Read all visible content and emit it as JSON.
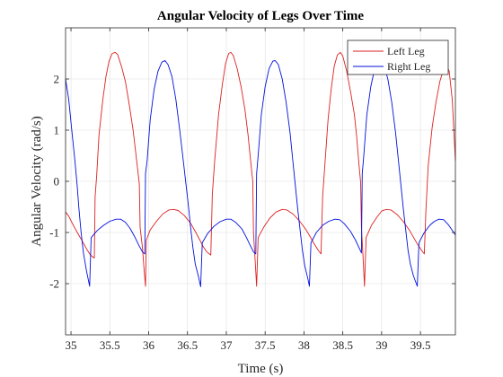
{
  "chart_data": {
    "type": "line",
    "title": "Angular Velocity of Legs Over Time",
    "xlabel": "Time (s)",
    "ylabel": "Angular Velocity (rad/s)",
    "xlim": [
      34.93,
      39.95
    ],
    "ylim": [
      -3,
      3
    ],
    "xticks": [
      35,
      35.5,
      36,
      36.5,
      37,
      37.5,
      38,
      38.5,
      39,
      39.5
    ],
    "xtick_labels": [
      "35",
      "35.5",
      "36",
      "36.5",
      "37",
      "37.5",
      "38",
      "38.5",
      "39",
      "39.5"
    ],
    "yticks": [
      -2,
      -1,
      0,
      1,
      2
    ],
    "ytick_labels": [
      "-2",
      "-1",
      "0",
      "1",
      "2"
    ],
    "grid": true,
    "legend_position": "top-right",
    "series": [
      {
        "name": "Left Leg",
        "color": "#dd2020",
        "points": [
          [
            34.93,
            -0.6
          ],
          [
            34.97,
            -0.68
          ],
          [
            35.03,
            -0.86
          ],
          [
            35.1,
            -1.05
          ],
          [
            35.15,
            -1.18
          ],
          [
            35.2,
            -1.32
          ],
          [
            35.25,
            -1.44
          ],
          [
            35.3,
            -1.5
          ],
          [
            35.31,
            -0.3
          ],
          [
            35.33,
            0.1
          ],
          [
            35.36,
            0.9
          ],
          [
            35.41,
            1.6
          ],
          [
            35.45,
            2.05
          ],
          [
            35.49,
            2.35
          ],
          [
            35.53,
            2.5
          ],
          [
            35.57,
            2.52
          ],
          [
            35.6,
            2.48
          ],
          [
            35.65,
            2.25
          ],
          [
            35.7,
            1.95
          ],
          [
            35.75,
            1.5
          ],
          [
            35.8,
            1.0
          ],
          [
            35.85,
            0.35
          ],
          [
            35.88,
            -0.05
          ],
          [
            35.89,
            -0.9
          ],
          [
            35.92,
            -1.3
          ],
          [
            35.94,
            -1.7
          ],
          [
            35.96,
            -2.05
          ],
          [
            35.97,
            -1.15
          ],
          [
            36.02,
            -0.95
          ],
          [
            36.1,
            -0.78
          ],
          [
            36.18,
            -0.64
          ],
          [
            36.26,
            -0.56
          ],
          [
            36.32,
            -0.55
          ],
          [
            36.38,
            -0.57
          ],
          [
            36.46,
            -0.67
          ],
          [
            36.54,
            -0.82
          ],
          [
            36.6,
            -0.98
          ],
          [
            36.66,
            -1.15
          ],
          [
            36.7,
            -1.27
          ],
          [
            36.75,
            -1.38
          ],
          [
            36.8,
            -1.44
          ],
          [
            36.82,
            -0.25
          ],
          [
            36.85,
            0.4
          ],
          [
            36.9,
            1.3
          ],
          [
            36.95,
            1.9
          ],
          [
            36.99,
            2.3
          ],
          [
            37.03,
            2.5
          ],
          [
            37.06,
            2.52
          ],
          [
            37.09,
            2.46
          ],
          [
            37.14,
            2.2
          ],
          [
            37.19,
            1.85
          ],
          [
            37.24,
            1.4
          ],
          [
            37.28,
            0.9
          ],
          [
            37.32,
            0.3
          ],
          [
            37.34,
            0.0
          ],
          [
            37.35,
            -1.0
          ],
          [
            37.37,
            -1.5
          ],
          [
            37.39,
            -2.05
          ],
          [
            37.41,
            -1.1
          ],
          [
            37.48,
            -0.9
          ],
          [
            37.56,
            -0.72
          ],
          [
            37.64,
            -0.6
          ],
          [
            37.72,
            -0.55
          ],
          [
            37.78,
            -0.56
          ],
          [
            37.86,
            -0.64
          ],
          [
            37.94,
            -0.77
          ],
          [
            38.02,
            -0.93
          ],
          [
            38.08,
            -1.08
          ],
          [
            38.13,
            -1.22
          ],
          [
            38.18,
            -1.34
          ],
          [
            38.22,
            -1.42
          ],
          [
            38.24,
            -0.3
          ],
          [
            38.27,
            0.35
          ],
          [
            38.31,
            1.2
          ],
          [
            38.35,
            1.8
          ],
          [
            38.39,
            2.25
          ],
          [
            38.43,
            2.47
          ],
          [
            38.47,
            2.52
          ],
          [
            38.5,
            2.45
          ],
          [
            38.55,
            2.15
          ],
          [
            38.6,
            1.75
          ],
          [
            38.65,
            1.3
          ],
          [
            38.68,
            0.85
          ],
          [
            38.71,
            0.3
          ],
          [
            38.73,
            -0.02
          ],
          [
            38.74,
            -0.9
          ],
          [
            38.76,
            -1.45
          ],
          [
            38.78,
            -2.05
          ],
          [
            38.8,
            -1.1
          ],
          [
            38.87,
            -0.86
          ],
          [
            38.94,
            -0.7
          ],
          [
            39.0,
            -0.58
          ],
          [
            39.06,
            -0.55
          ],
          [
            39.12,
            -0.56
          ],
          [
            39.2,
            -0.65
          ],
          [
            39.28,
            -0.79
          ],
          [
            39.36,
            -0.96
          ],
          [
            39.42,
            -1.12
          ],
          [
            39.47,
            -1.25
          ],
          [
            39.52,
            -1.36
          ],
          [
            39.55,
            -1.42
          ],
          [
            39.57,
            -0.6
          ],
          [
            39.6,
            0.3
          ],
          [
            39.65,
            1.05
          ],
          [
            39.7,
            1.55
          ],
          [
            39.75,
            1.95
          ],
          [
            39.8,
            2.2
          ],
          [
            39.84,
            2.25
          ],
          [
            39.87,
            2.15
          ],
          [
            39.91,
            1.6
          ],
          [
            39.95,
            0.4
          ]
        ]
      },
      {
        "name": "Right Leg",
        "color": "#0010dd",
        "points": [
          [
            34.93,
            2.0
          ],
          [
            34.97,
            1.6
          ],
          [
            35.01,
            1.0
          ],
          [
            35.05,
            0.4
          ],
          [
            35.08,
            -0.1
          ],
          [
            35.1,
            -0.5
          ],
          [
            35.13,
            -1.0
          ],
          [
            35.16,
            -1.4
          ],
          [
            35.2,
            -1.75
          ],
          [
            35.24,
            -2.05
          ],
          [
            35.26,
            -1.1
          ],
          [
            35.34,
            -0.96
          ],
          [
            35.42,
            -0.86
          ],
          [
            35.5,
            -0.78
          ],
          [
            35.58,
            -0.74
          ],
          [
            35.64,
            -0.74
          ],
          [
            35.7,
            -0.8
          ],
          [
            35.76,
            -0.92
          ],
          [
            35.82,
            -1.08
          ],
          [
            35.87,
            -1.24
          ],
          [
            35.92,
            -1.38
          ],
          [
            35.95,
            -1.42
          ],
          [
            35.96,
            0.15
          ],
          [
            35.98,
            0.4
          ],
          [
            36.02,
            1.2
          ],
          [
            36.07,
            1.8
          ],
          [
            36.12,
            2.15
          ],
          [
            36.17,
            2.33
          ],
          [
            36.21,
            2.36
          ],
          [
            36.25,
            2.28
          ],
          [
            36.3,
            2.05
          ],
          [
            36.35,
            1.6
          ],
          [
            36.4,
            1.0
          ],
          [
            36.45,
            0.35
          ],
          [
            36.48,
            -0.05
          ],
          [
            36.51,
            -0.45
          ],
          [
            36.54,
            -0.9
          ],
          [
            36.57,
            -1.3
          ],
          [
            36.6,
            -1.62
          ],
          [
            36.64,
            -1.85
          ],
          [
            36.67,
            -2.06
          ],
          [
            36.69,
            -1.2
          ],
          [
            36.76,
            -1.02
          ],
          [
            36.84,
            -0.88
          ],
          [
            36.92,
            -0.79
          ],
          [
            37.0,
            -0.74
          ],
          [
            37.06,
            -0.74
          ],
          [
            37.12,
            -0.8
          ],
          [
            37.2,
            -0.93
          ],
          [
            37.26,
            -1.1
          ],
          [
            37.31,
            -1.26
          ],
          [
            37.35,
            -1.38
          ],
          [
            37.38,
            -1.42
          ],
          [
            37.39,
            0.15
          ],
          [
            37.41,
            0.5
          ],
          [
            37.45,
            1.3
          ],
          [
            37.5,
            1.85
          ],
          [
            37.55,
            2.2
          ],
          [
            37.6,
            2.35
          ],
          [
            37.63,
            2.36
          ],
          [
            37.67,
            2.28
          ],
          [
            37.72,
            2.0
          ],
          [
            37.77,
            1.55
          ],
          [
            37.82,
            0.95
          ],
          [
            37.86,
            0.35
          ],
          [
            37.89,
            -0.1
          ],
          [
            37.92,
            -0.55
          ],
          [
            37.95,
            -0.95
          ],
          [
            37.98,
            -1.35
          ],
          [
            38.01,
            -1.65
          ],
          [
            38.05,
            -1.9
          ],
          [
            38.07,
            -2.05
          ],
          [
            38.09,
            -1.2
          ],
          [
            38.16,
            -1.0
          ],
          [
            38.24,
            -0.86
          ],
          [
            38.32,
            -0.78
          ],
          [
            38.4,
            -0.74
          ],
          [
            38.46,
            -0.75
          ],
          [
            38.52,
            -0.83
          ],
          [
            38.6,
            -0.98
          ],
          [
            38.66,
            -1.14
          ],
          [
            38.71,
            -1.3
          ],
          [
            38.74,
            -1.4
          ],
          [
            38.75,
            0.15
          ],
          [
            38.77,
            0.5
          ],
          [
            38.81,
            1.3
          ],
          [
            38.86,
            1.85
          ],
          [
            38.91,
            2.2
          ],
          [
            38.96,
            2.35
          ],
          [
            38.99,
            2.36
          ],
          [
            39.03,
            2.27
          ],
          [
            39.08,
            2.0
          ],
          [
            39.13,
            1.55
          ],
          [
            39.18,
            0.95
          ],
          [
            39.22,
            0.35
          ],
          [
            39.25,
            -0.1
          ],
          [
            39.28,
            -0.55
          ],
          [
            39.31,
            -0.95
          ],
          [
            39.34,
            -1.35
          ],
          [
            39.37,
            -1.62
          ],
          [
            39.41,
            -1.85
          ],
          [
            39.46,
            -2.05
          ],
          [
            39.48,
            -1.2
          ],
          [
            39.55,
            -1.0
          ],
          [
            39.62,
            -0.86
          ],
          [
            39.68,
            -0.78
          ],
          [
            39.74,
            -0.74
          ],
          [
            39.8,
            -0.75
          ],
          [
            39.86,
            -0.85
          ],
          [
            39.92,
            -0.98
          ],
          [
            39.95,
            -1.05
          ]
        ]
      }
    ]
  }
}
